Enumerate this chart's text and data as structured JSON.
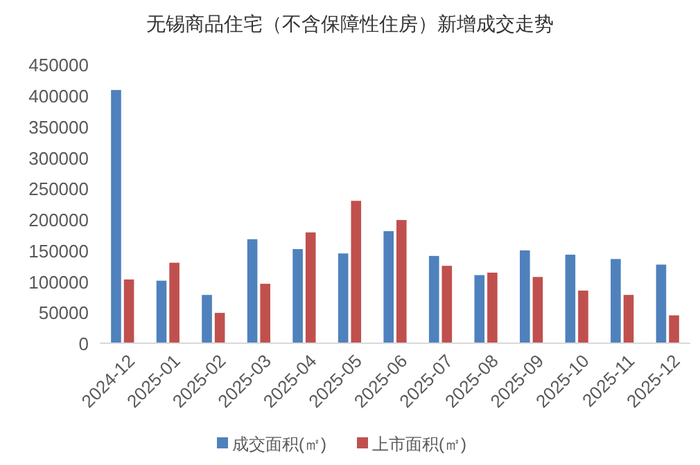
{
  "chart_data": {
    "type": "bar",
    "title": "无锡商品住宅（不含保障性住房）新增成交走势",
    "categories": [
      "2024-12",
      "2025-01",
      "2025-02",
      "2025-03",
      "2025-04",
      "2025-05",
      "2025-06",
      "2025-07",
      "2025-08",
      "2025-09",
      "2025-10",
      "2025-11",
      "2025-12"
    ],
    "series": [
      {
        "name": "成交面积(㎡)",
        "color": "#4f81bd",
        "values": [
          409000,
          101000,
          78000,
          168000,
          152000,
          145000,
          181000,
          141000,
          110000,
          150000,
          143000,
          136000,
          127000
        ]
      },
      {
        "name": "上市面积(㎡)",
        "color": "#c0504d",
        "values": [
          103000,
          130000,
          49000,
          96000,
          179000,
          230000,
          199000,
          125000,
          114000,
          107000,
          85000,
          78000,
          45000
        ]
      }
    ],
    "ylim": [
      0,
      450000
    ],
    "yticks": [
      0,
      50000,
      100000,
      150000,
      200000,
      250000,
      300000,
      350000,
      400000,
      450000
    ],
    "grid": false,
    "legend": "bottom"
  }
}
